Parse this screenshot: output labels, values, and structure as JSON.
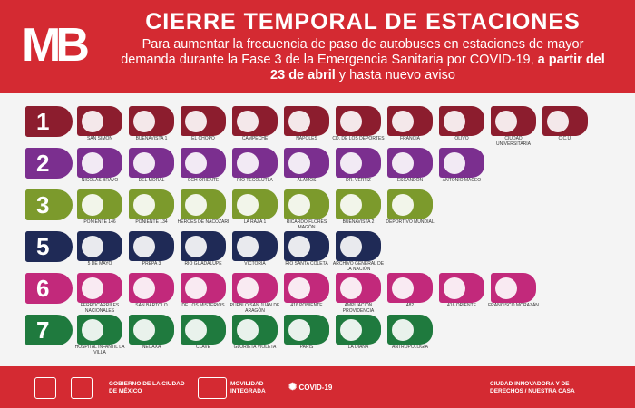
{
  "header": {
    "logo": "MB",
    "title": "CIERRE TEMPORAL DE ESTACIONES",
    "subtitle": [
      "Para aumentar la frecuencia de paso de autobuses en estaciones de mayor demanda durante la Fase 3 de la Emergencia Sanitaria por COVID-19,",
      "a partir del 23 de abril",
      "y hasta nuevo aviso"
    ]
  },
  "lines": [
    {
      "number": "1",
      "color": "#8c1d2e",
      "stations": [
        "SAN SIMÓN",
        "BUENAVISTA 1",
        "EL CHOPO",
        "CAMPECHE",
        "NÁPOLES",
        "CD. DE LOS DEPORTES",
        "FRANCIA",
        "OLIVO",
        "CIUDAD UNIVERSITARIA",
        "C.C.U."
      ]
    },
    {
      "number": "2",
      "color": "#7b2f8f",
      "stations": [
        "NICOLÁS BRAVO",
        "DEL MORAL",
        "CCH ORIENTE",
        "RÍO TECOLUTLA",
        "ÁLAMOS",
        "DR. VÉRTIZ",
        "ESCANDÓN",
        "ANTONIO MACEO"
      ]
    },
    {
      "number": "3",
      "color": "#7c9a2c",
      "stations": [
        "PONIENTE 146",
        "PONIENTE 134",
        "HÉROES DE NACOZARI",
        "LA RAZA 1",
        "RICARDO FLORES MAGÓN",
        "BUENAVISTA 2",
        "DEPORTIVO MUNDIAL"
      ]
    },
    {
      "number": "5",
      "color": "#1f2a56",
      "stations": [
        "5 DE MAYO",
        "PREPA 3",
        "RÍO GUADALUPE",
        "VICTORIA",
        "RÍO SANTA COLETA",
        "ARCHIVO GENERAL DE LA NACIÓN"
      ]
    },
    {
      "number": "6",
      "color": "#c2297b",
      "stations": [
        "FERROCARRILES NACIONALES",
        "SAN BARTOLO",
        "DE LOS MISTERIOS",
        "PUEBLO SAN JUAN DE ARAGÓN",
        "416 PONIENTE",
        "AMPLIACIÓN PROVIDENCIA",
        "482",
        "416 ORIENTE",
        "FRANCISCO MORAZÁN"
      ]
    },
    {
      "number": "7",
      "color": "#1f7a3e",
      "stations": [
        "HOSPITAL INFANTIL LA VILLA",
        "NECAXA",
        "CLAVE",
        "GLORIETA VIOLETA",
        "PARÍS",
        "LA DIANA",
        "ANTROPOLOGÍA"
      ]
    }
  ],
  "footer": {
    "government": "GOBIERNO DE LA CIUDAD DE MÉXICO",
    "mobility": "MOVILIDAD INTEGRADA",
    "covid": "COVID-19",
    "slogan": "CIUDAD INNOVADORA Y DE DERECHOS / NUESTRA CASA"
  }
}
